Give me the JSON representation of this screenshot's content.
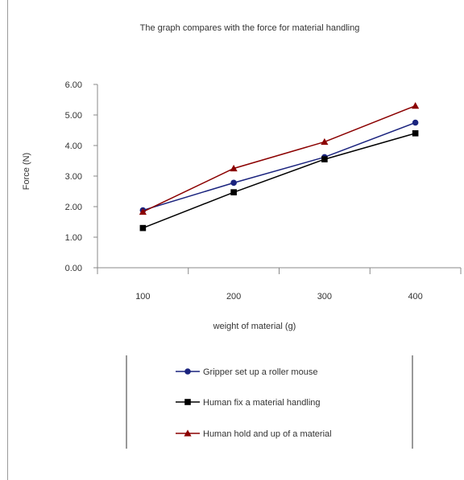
{
  "chart_data": {
    "type": "line",
    "title": "The graph compares with the force for material handling",
    "xlabel": "weight of material (g)",
    "ylabel": "Force (N)",
    "categories": [
      "100",
      "200",
      "300",
      "400"
    ],
    "ylim": [
      0,
      6
    ],
    "yticks": [
      "0.00",
      "1.00",
      "2.00",
      "3.00",
      "4.00",
      "5.00",
      "6.00"
    ],
    "grid": false,
    "legend_position": "bottom",
    "series": [
      {
        "name": "Gripper set up a roller mouse",
        "values": [
          1.88,
          2.78,
          3.62,
          4.75
        ],
        "color": "#1a237e",
        "marker": "circle"
      },
      {
        "name": "Human fix a material handling",
        "values": [
          1.3,
          2.47,
          3.55,
          4.4
        ],
        "color": "#000000",
        "marker": "square"
      },
      {
        "name": "Human hold and up of a material",
        "values": [
          1.83,
          3.25,
          4.12,
          5.3
        ],
        "color": "#8b0000",
        "marker": "triangle"
      }
    ]
  }
}
